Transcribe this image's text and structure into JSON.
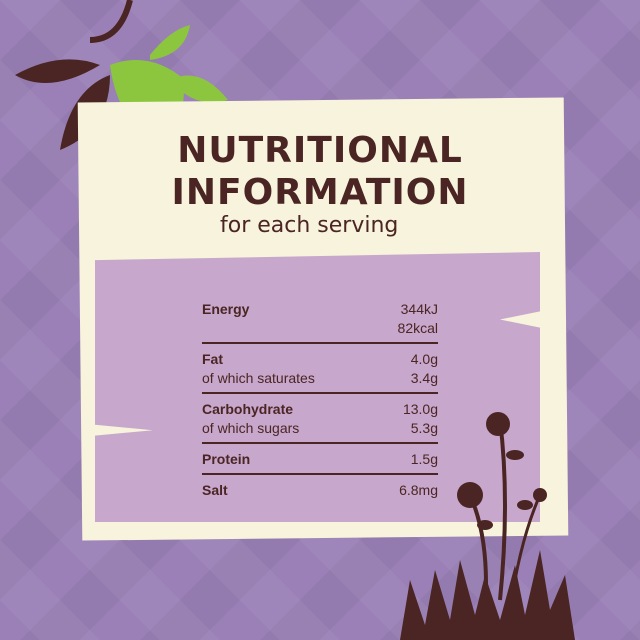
{
  "header": {
    "title_line1": "NUTRITIONAL",
    "title_line2": "INFORMATION",
    "subtitle": "for each serving"
  },
  "nutrition": [
    {
      "name": "Energy",
      "value": "344kJ",
      "sub_name": "",
      "sub_value": "82kcal"
    },
    {
      "name": "Fat",
      "value": "4.0g",
      "sub_name": "of which saturates",
      "sub_value": "3.4g"
    },
    {
      "name": "Carbohydrate",
      "value": "13.0g",
      "sub_name": "of which sugars",
      "sub_value": "5.3g"
    },
    {
      "name": "Protein",
      "value": "1.5g"
    },
    {
      "name": "Salt",
      "value": "6.8mg"
    }
  ],
  "colors": {
    "background": "#9a80b6",
    "card": "#f7f3dc",
    "panel": "#c7a7cc",
    "text": "#4a2523",
    "leaf_green": "#8cc63f"
  }
}
